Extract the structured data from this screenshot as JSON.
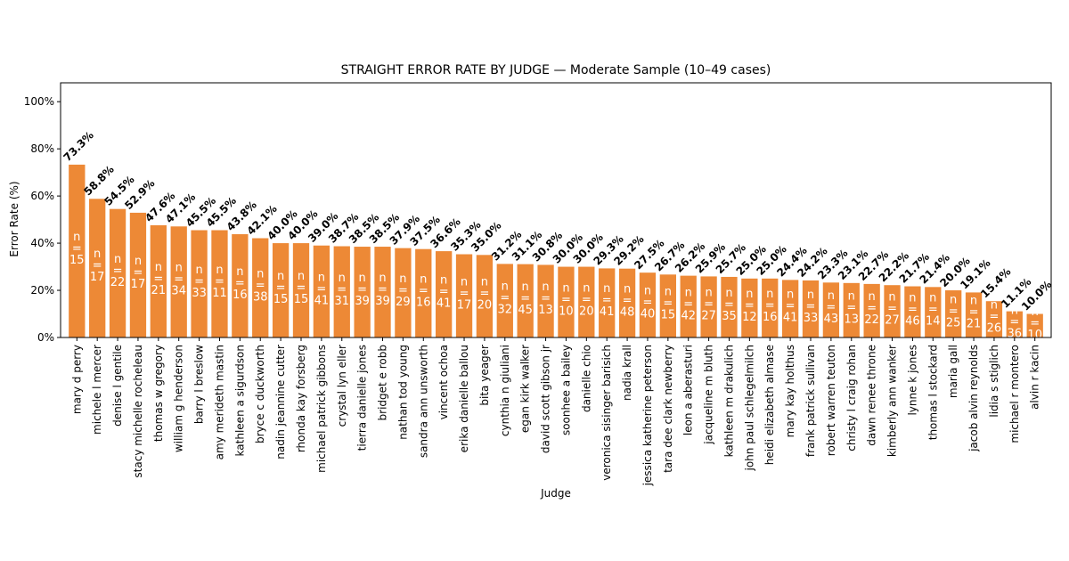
{
  "chart_data": {
    "type": "bar",
    "title": "STRAIGHT ERROR RATE BY JUDGE — Moderate Sample (10–49 cases)",
    "xlabel": "Judge",
    "ylabel": "Error Rate (%)",
    "ylim": [
      0,
      108
    ],
    "yticks": [
      0,
      20,
      40,
      60,
      80,
      100
    ],
    "ytick_labels": [
      "0%",
      "20%",
      "40%",
      "60%",
      "80%",
      "100%"
    ],
    "bar_color": "#ed8936",
    "n_prefix": "n\n=\n",
    "categories": [
      "mary d perry",
      "michele l mercer",
      "denise l gentile",
      "stacy michelle rocheleau",
      "thomas w gregory",
      "william g henderson",
      "barry l breslow",
      "amy merideth mastin",
      "kathleen a sigurdson",
      "bryce c duckworth",
      "nadin jeannine cutter",
      "rhonda kay forsberg",
      "michael patrick gibbons",
      "crystal lyn eller",
      "tierra danielle jones",
      "bridget e robb",
      "nathan tod young",
      "sandra ann unsworth",
      "vincent ochoa",
      "erika danielle ballou",
      "bita yeager",
      "cynthia n giuliani",
      "egan kirk walker",
      "david scott gibson jr",
      "soonhee a bailey",
      "danielle chio",
      "veronica sisinger barisich",
      "nadia krall",
      "jessica katherine peterson",
      "tara dee clark newberry",
      "leon a aberasturi",
      "jacqueline m bluth",
      "kathleen m drakulich",
      "john paul schlegelmilch",
      "heidi elizabeth almase",
      "mary kay holthus",
      "frank patrick sullivan",
      "robert warren teuton",
      "christy l craig rohan",
      "dawn renee throne",
      "kimberly ann wanker",
      "lynne k jones",
      "thomas l stockard",
      "maria gall",
      "jacob alvin reynolds",
      "lidia s stiglich",
      "michael r montero",
      "alvin r kacin"
    ],
    "values": [
      73.3,
      58.8,
      54.5,
      52.9,
      47.6,
      47.1,
      45.5,
      45.5,
      43.8,
      42.1,
      40.0,
      40.0,
      39.0,
      38.7,
      38.5,
      38.5,
      37.9,
      37.5,
      36.6,
      35.3,
      35.0,
      31.2,
      31.1,
      30.8,
      30.0,
      30.0,
      29.3,
      29.2,
      27.5,
      26.7,
      26.2,
      25.9,
      25.7,
      25.0,
      25.0,
      24.4,
      24.2,
      23.3,
      23.1,
      22.7,
      22.2,
      21.7,
      21.4,
      20.0,
      19.1,
      15.4,
      11.1,
      10.0
    ],
    "value_labels": [
      "73.3%",
      "58.8%",
      "54.5%",
      "52.9%",
      "47.6%",
      "47.1%",
      "45.5%",
      "45.5%",
      "43.8%",
      "42.1%",
      "40.0%",
      "40.0%",
      "39.0%",
      "38.7%",
      "38.5%",
      "38.5%",
      "37.9%",
      "37.5%",
      "36.6%",
      "35.3%",
      "35.0%",
      "31.2%",
      "31.1%",
      "30.8%",
      "30.0%",
      "30.0%",
      "29.3%",
      "29.2%",
      "27.5%",
      "26.7%",
      "26.2%",
      "25.9%",
      "25.7%",
      "25.0%",
      "25.0%",
      "24.4%",
      "24.2%",
      "23.3%",
      "23.1%",
      "22.7%",
      "22.2%",
      "21.7%",
      "21.4%",
      "20.0%",
      "19.1%",
      "15.4%",
      "11.1%",
      "10.0%"
    ],
    "n_values": [
      15,
      17,
      22,
      17,
      21,
      34,
      33,
      11,
      16,
      38,
      15,
      15,
      41,
      31,
      39,
      39,
      29,
      16,
      41,
      17,
      20,
      32,
      45,
      13,
      10,
      20,
      41,
      48,
      40,
      15,
      42,
      27,
      35,
      12,
      16,
      41,
      33,
      43,
      13,
      22,
      27,
      46,
      14,
      25,
      21,
      26,
      36,
      10
    ]
  }
}
